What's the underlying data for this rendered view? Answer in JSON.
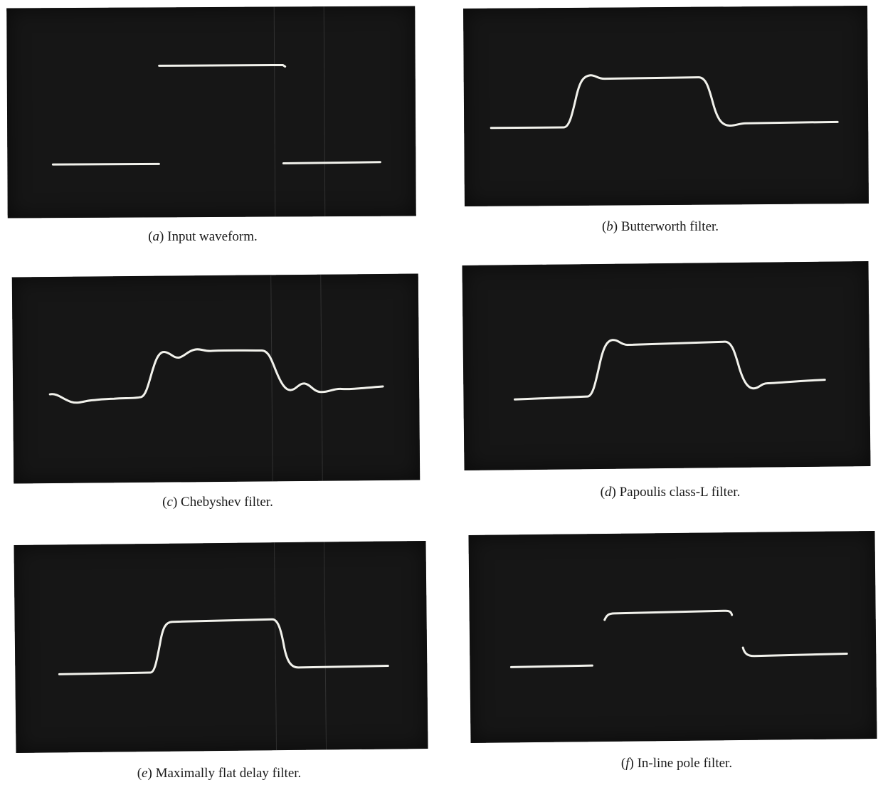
{
  "figures": [
    {
      "id": "a",
      "letter": "a",
      "caption": "Input waveform.",
      "trace": "ideal-pulse-waveform"
    },
    {
      "id": "b",
      "letter": "b",
      "caption": "Butterworth filter.",
      "trace": "butterworth-pulse-response"
    },
    {
      "id": "c",
      "letter": "c",
      "caption": "Chebyshev filter.",
      "trace": "chebyshev-pulse-response"
    },
    {
      "id": "d",
      "letter": "d",
      "caption": "Papoulis class-L filter.",
      "trace": "papoulis-pulse-response"
    },
    {
      "id": "e",
      "letter": "e",
      "caption": "Maximally flat delay filter.",
      "trace": "max-flat-delay-pulse-response"
    },
    {
      "id": "f",
      "letter": "f",
      "caption": "In-line pole filter.",
      "trace": "in-line-pole-pulse-response"
    }
  ],
  "colors": {
    "screen_background": "#161616",
    "trace": "#f2f2ec",
    "page": "#ffffff"
  }
}
